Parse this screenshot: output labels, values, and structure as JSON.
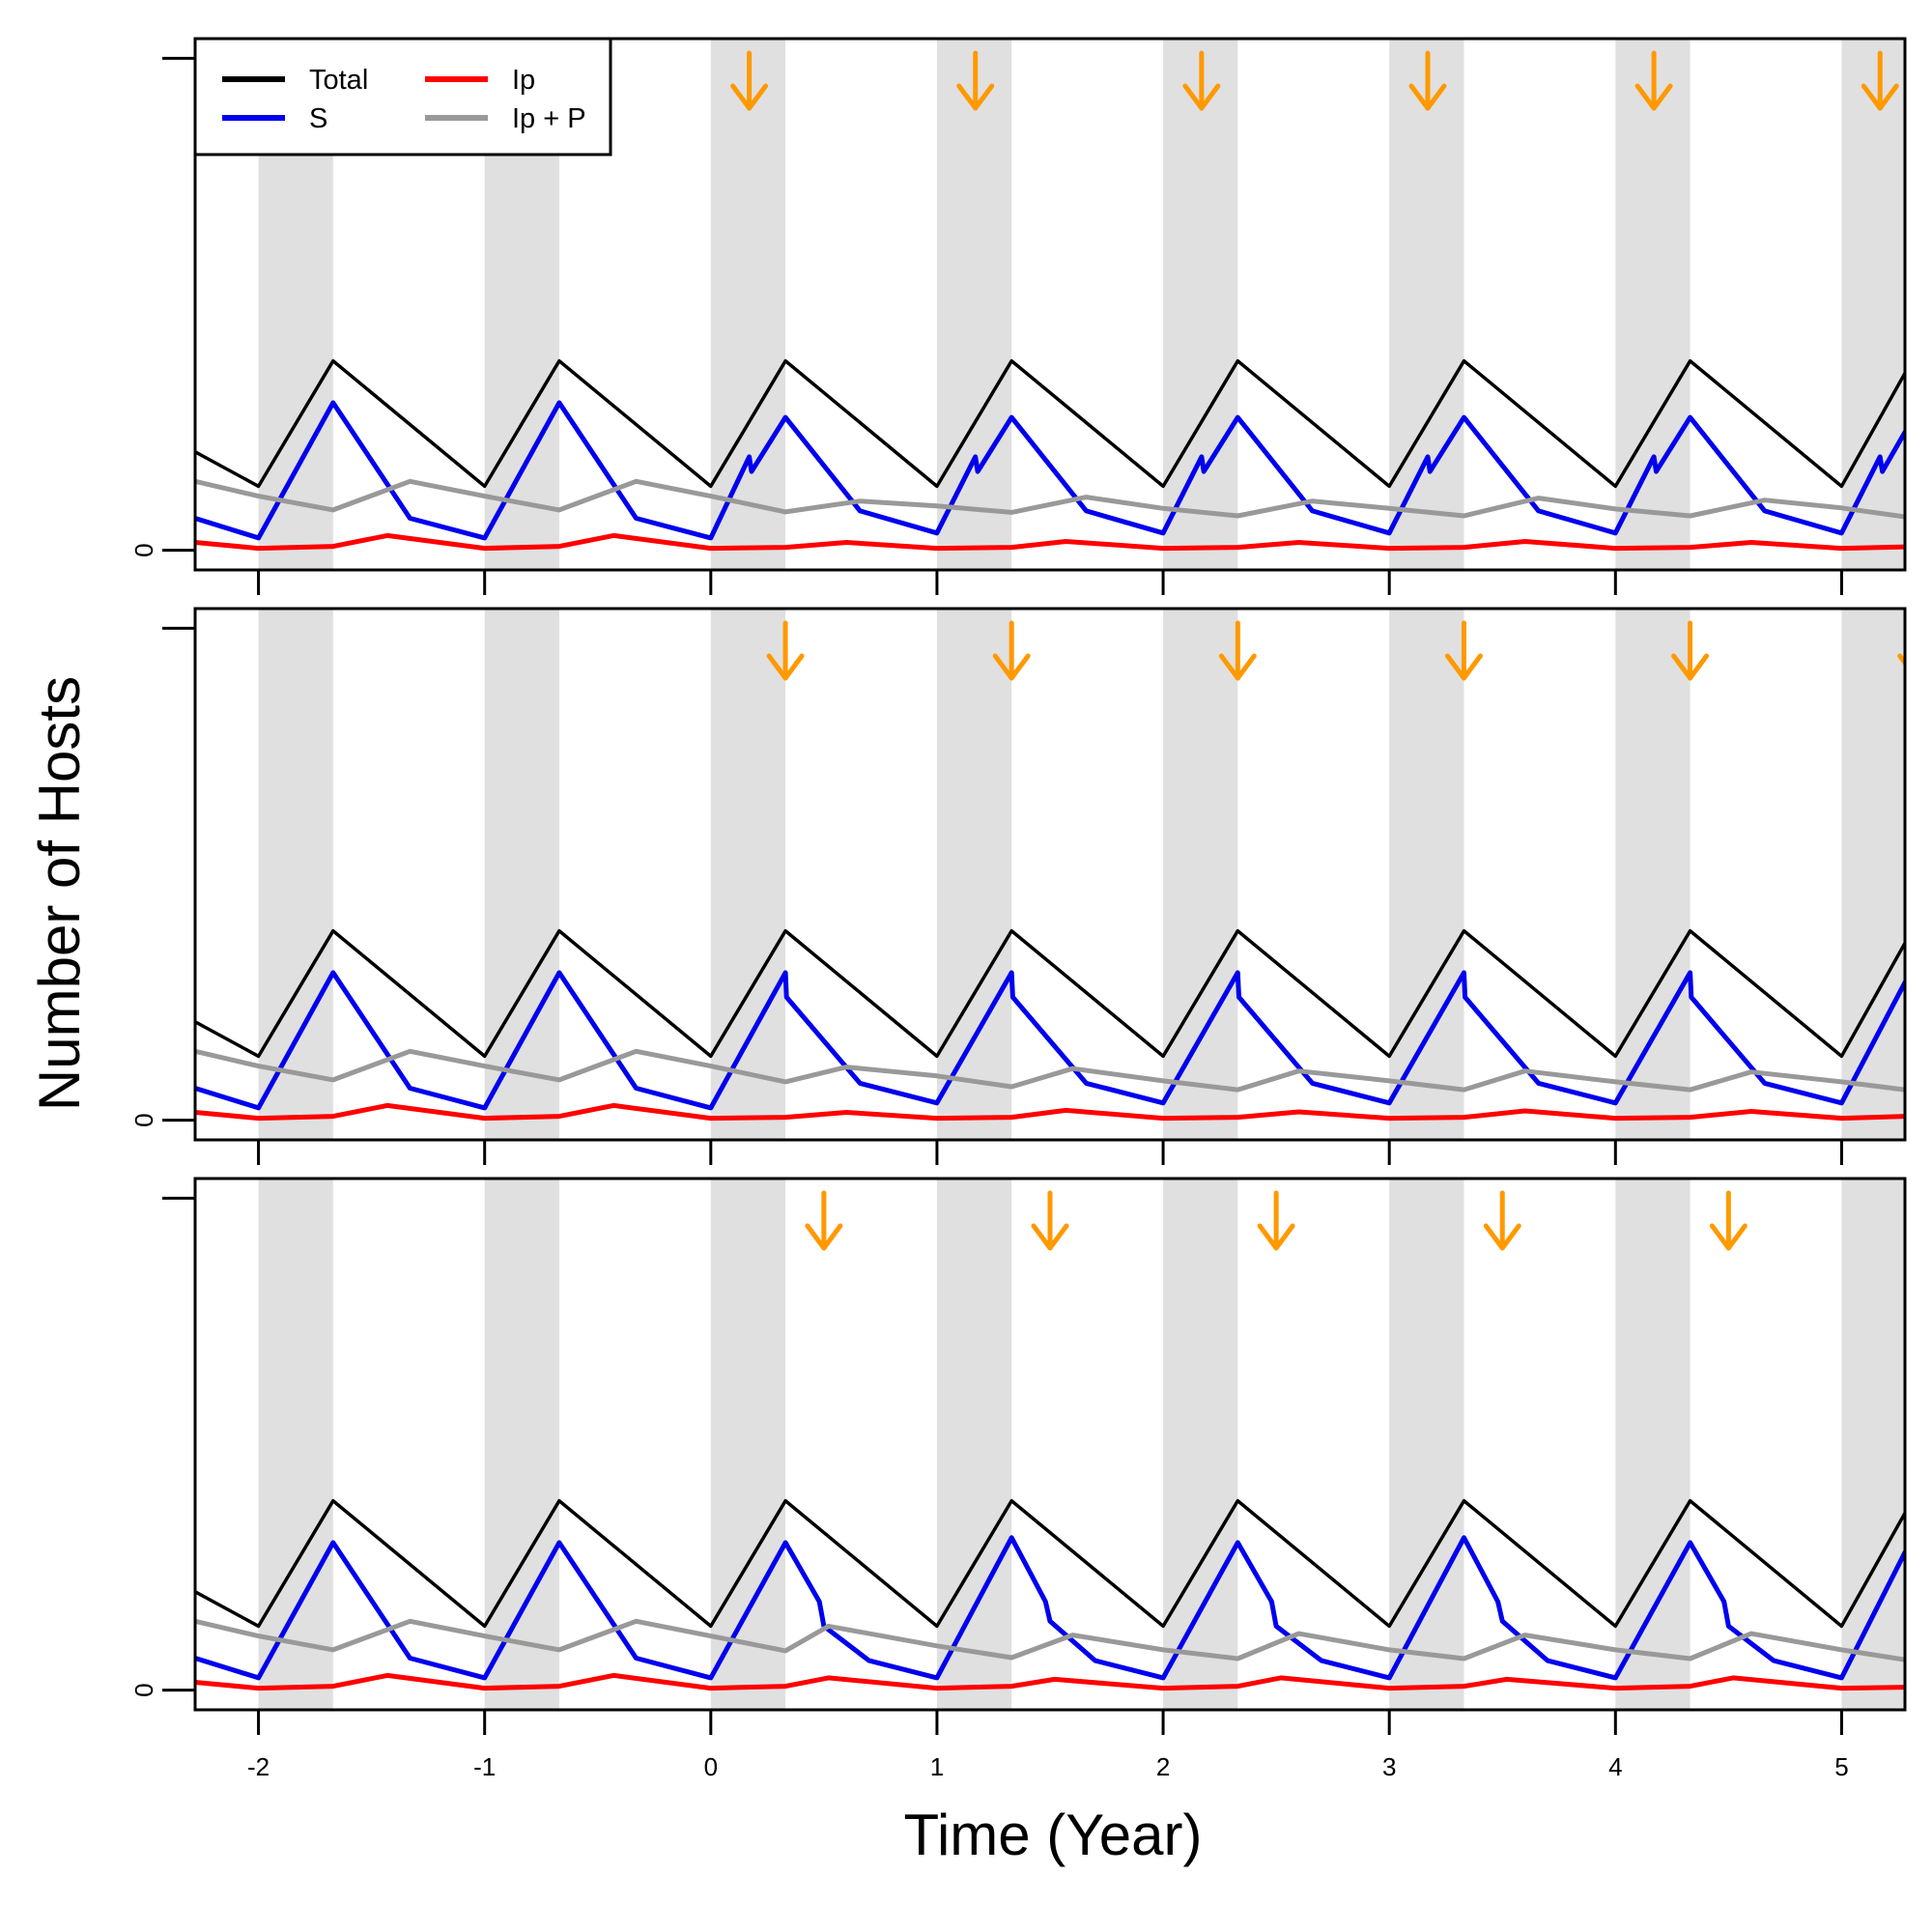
{
  "figure": {
    "xlabel": "Time (Year)",
    "ylabel": "Number of Hosts"
  },
  "legend": {
    "placement": "top-left",
    "entries": [
      {
        "label": "Total",
        "color": "#000000"
      },
      {
        "label": "Ip",
        "color": "#ff0000"
      },
      {
        "label": "S",
        "color": "#0000ee"
      },
      {
        "label": "Ip + P",
        "color": "#999999"
      }
    ]
  },
  "colors": {
    "total": "#000000",
    "S": "#0000ee",
    "Ip": "#ff0000",
    "IpP": "#999999",
    "arrow": "#ff9900",
    "season_shade": "#e0e0e0"
  },
  "chart_data": [
    {
      "type": "line",
      "panel": "top",
      "xlim": [
        -2.28,
        5.28
      ],
      "ylim": [
        -0.04,
        1.04
      ],
      "y_ticks": [
        "0",
        ""
      ],
      "x_ticks": [
        -2,
        -1,
        0,
        1,
        2,
        3,
        4,
        5
      ],
      "x_tick_labels_shown": false,
      "shaded_seasons": [
        [
          -2,
          -1.67
        ],
        [
          -1,
          -0.67
        ],
        [
          0,
          0.33
        ],
        [
          1,
          1.33
        ],
        [
          2,
          2.33
        ],
        [
          3,
          3.33
        ],
        [
          4,
          4.33
        ],
        [
          5,
          5.33
        ]
      ],
      "intervention_arrows_at": [
        0.17,
        1.17,
        2.17,
        3.17,
        4.17,
        5.17
      ],
      "series": [
        {
          "name": "Total",
          "x": [
            -2.28,
            -2.0,
            -1.67,
            -1.0,
            -0.67,
            0.0,
            0.33,
            1.0,
            1.33,
            2.0,
            2.33,
            3.0,
            3.33,
            4.0,
            4.33,
            5.0,
            5.28
          ],
          "y": [
            0.2,
            0.13,
            0.385,
            0.13,
            0.385,
            0.13,
            0.385,
            0.13,
            0.385,
            0.13,
            0.385,
            0.13,
            0.385,
            0.13,
            0.385,
            0.13,
            0.36
          ]
        },
        {
          "name": "S",
          "x": [
            -2.28,
            -2.0,
            -1.67,
            -1.33,
            -1.0,
            -0.67,
            -0.33,
            0.0,
            0.17,
            0.18,
            0.33,
            0.66,
            1.0,
            1.17,
            1.18,
            1.33,
            1.66,
            2.0,
            2.17,
            2.18,
            2.33,
            2.66,
            3.0,
            3.17,
            3.18,
            3.33,
            3.66,
            4.0,
            4.17,
            4.18,
            4.33,
            4.66,
            5.0,
            5.17,
            5.18,
            5.28
          ],
          "y": [
            0.065,
            0.025,
            0.3,
            0.065,
            0.025,
            0.3,
            0.065,
            0.025,
            0.19,
            0.16,
            0.27,
            0.08,
            0.035,
            0.19,
            0.16,
            0.27,
            0.08,
            0.035,
            0.19,
            0.16,
            0.27,
            0.08,
            0.035,
            0.19,
            0.16,
            0.27,
            0.08,
            0.035,
            0.19,
            0.16,
            0.27,
            0.08,
            0.035,
            0.19,
            0.16,
            0.24
          ]
        },
        {
          "name": "Ip",
          "x": [
            -2.28,
            -2.0,
            -1.67,
            -1.43,
            -1.0,
            -0.67,
            -0.43,
            0.0,
            0.33,
            0.6,
            1.0,
            1.33,
            1.57,
            2.0,
            2.33,
            2.6,
            3.0,
            3.33,
            3.6,
            4.0,
            4.33,
            4.6,
            5.0,
            5.28
          ],
          "y": [
            0.016,
            0.004,
            0.008,
            0.03,
            0.004,
            0.008,
            0.03,
            0.004,
            0.006,
            0.016,
            0.004,
            0.006,
            0.018,
            0.004,
            0.006,
            0.016,
            0.004,
            0.006,
            0.018,
            0.004,
            0.006,
            0.016,
            0.004,
            0.007
          ]
        },
        {
          "name": "Ip + P",
          "x": [
            -2.28,
            -2.0,
            -1.67,
            -1.33,
            -1.0,
            -0.67,
            -0.33,
            0.0,
            0.33,
            0.66,
            1.0,
            1.33,
            1.66,
            2.0,
            2.33,
            2.66,
            3.0,
            3.33,
            3.66,
            4.0,
            4.33,
            4.66,
            5.0,
            5.28
          ],
          "y": [
            0.14,
            0.11,
            0.082,
            0.14,
            0.11,
            0.082,
            0.14,
            0.11,
            0.078,
            0.1,
            0.09,
            0.077,
            0.108,
            0.085,
            0.07,
            0.1,
            0.085,
            0.07,
            0.106,
            0.084,
            0.07,
            0.102,
            0.086,
            0.068
          ]
        }
      ]
    },
    {
      "type": "line",
      "panel": "middle",
      "xlim": [
        -2.28,
        5.28
      ],
      "ylim": [
        -0.04,
        1.04
      ],
      "y_ticks": [
        "0",
        ""
      ],
      "x_ticks": [
        -2,
        -1,
        0,
        1,
        2,
        3,
        4,
        5
      ],
      "x_tick_labels_shown": false,
      "shaded_seasons": [
        [
          -2,
          -1.67
        ],
        [
          -1,
          -0.67
        ],
        [
          0,
          0.33
        ],
        [
          1,
          1.33
        ],
        [
          2,
          2.33
        ],
        [
          3,
          3.33
        ],
        [
          4,
          4.33
        ],
        [
          5,
          5.33
        ]
      ],
      "intervention_arrows_at": [
        0.33,
        1.33,
        2.33,
        3.33,
        4.33,
        5.33
      ],
      "series": [
        {
          "name": "Total",
          "x": [
            -2.28,
            -2.0,
            -1.67,
            -1.0,
            -0.67,
            0.0,
            0.33,
            1.0,
            1.33,
            2.0,
            2.33,
            3.0,
            3.33,
            4.0,
            4.33,
            5.0,
            5.28
          ],
          "y": [
            0.2,
            0.13,
            0.385,
            0.13,
            0.385,
            0.13,
            0.385,
            0.13,
            0.385,
            0.13,
            0.385,
            0.13,
            0.385,
            0.13,
            0.385,
            0.13,
            0.36
          ]
        },
        {
          "name": "S",
          "x": [
            -2.28,
            -2.0,
            -1.67,
            -1.33,
            -1.0,
            -0.67,
            -0.33,
            0.0,
            0.33,
            0.335,
            0.66,
            1.0,
            1.33,
            1.335,
            1.66,
            2.0,
            2.33,
            2.335,
            2.66,
            3.0,
            3.33,
            3.335,
            3.66,
            4.0,
            4.33,
            4.335,
            4.66,
            5.0,
            5.28
          ],
          "y": [
            0.065,
            0.025,
            0.3,
            0.065,
            0.025,
            0.3,
            0.065,
            0.025,
            0.3,
            0.25,
            0.075,
            0.035,
            0.3,
            0.25,
            0.075,
            0.035,
            0.3,
            0.25,
            0.075,
            0.035,
            0.3,
            0.25,
            0.075,
            0.035,
            0.3,
            0.25,
            0.075,
            0.035,
            0.28
          ]
        },
        {
          "name": "Ip",
          "x": [
            -2.28,
            -2.0,
            -1.67,
            -1.43,
            -1.0,
            -0.67,
            -0.43,
            0.0,
            0.33,
            0.6,
            1.0,
            1.33,
            1.57,
            2.0,
            2.33,
            2.6,
            3.0,
            3.33,
            3.6,
            4.0,
            4.33,
            4.6,
            5.0,
            5.28
          ],
          "y": [
            0.016,
            0.004,
            0.008,
            0.03,
            0.004,
            0.008,
            0.03,
            0.004,
            0.006,
            0.016,
            0.004,
            0.006,
            0.02,
            0.004,
            0.006,
            0.017,
            0.004,
            0.006,
            0.019,
            0.004,
            0.006,
            0.018,
            0.004,
            0.008
          ]
        },
        {
          "name": "Ip + P",
          "x": [
            -2.28,
            -2.0,
            -1.67,
            -1.33,
            -1.0,
            -0.67,
            -0.33,
            0.0,
            0.33,
            0.6,
            1.0,
            1.33,
            1.6,
            2.0,
            2.33,
            2.6,
            3.0,
            3.33,
            3.6,
            4.0,
            4.33,
            4.6,
            5.0,
            5.28
          ],
          "y": [
            0.14,
            0.11,
            0.082,
            0.14,
            0.11,
            0.082,
            0.14,
            0.11,
            0.078,
            0.108,
            0.09,
            0.068,
            0.105,
            0.08,
            0.062,
            0.1,
            0.08,
            0.062,
            0.1,
            0.078,
            0.062,
            0.098,
            0.078,
            0.062
          ]
        }
      ]
    },
    {
      "type": "line",
      "panel": "bottom",
      "xlim": [
        -2.28,
        5.28
      ],
      "ylim": [
        -0.04,
        1.04
      ],
      "y_ticks": [
        "0",
        ""
      ],
      "x_ticks": [
        -2,
        -1,
        0,
        1,
        2,
        3,
        4,
        5
      ],
      "x_tick_labels_shown": true,
      "x_tick_labels": [
        "-2",
        "-1",
        "0",
        "1",
        "2",
        "3",
        "4",
        "5"
      ],
      "shaded_seasons": [
        [
          -2,
          -1.67
        ],
        [
          -1,
          -0.67
        ],
        [
          0,
          0.33
        ],
        [
          1,
          1.33
        ],
        [
          2,
          2.33
        ],
        [
          3,
          3.33
        ],
        [
          4,
          4.33
        ],
        [
          5,
          5.33
        ]
      ],
      "intervention_arrows_at": [
        0.5,
        1.5,
        2.5,
        3.5,
        4.5
      ],
      "series": [
        {
          "name": "Total",
          "x": [
            -2.28,
            -2.0,
            -1.67,
            -1.0,
            -0.67,
            0.0,
            0.33,
            1.0,
            1.33,
            2.0,
            2.33,
            3.0,
            3.33,
            4.0,
            4.33,
            5.0,
            5.28
          ],
          "y": [
            0.2,
            0.13,
            0.385,
            0.13,
            0.385,
            0.13,
            0.385,
            0.13,
            0.385,
            0.13,
            0.385,
            0.13,
            0.385,
            0.13,
            0.385,
            0.13,
            0.36
          ]
        },
        {
          "name": "S",
          "x": [
            -2.28,
            -2.0,
            -1.67,
            -1.33,
            -1.0,
            -0.67,
            -0.33,
            0.0,
            0.33,
            0.48,
            0.5,
            0.7,
            1.0,
            1.33,
            1.48,
            1.5,
            1.7,
            2.0,
            2.33,
            2.48,
            2.5,
            2.7,
            3.0,
            3.33,
            3.48,
            3.5,
            3.7,
            4.0,
            4.33,
            4.48,
            4.5,
            4.7,
            5.0,
            5.28
          ],
          "y": [
            0.065,
            0.025,
            0.3,
            0.065,
            0.025,
            0.3,
            0.065,
            0.025,
            0.3,
            0.18,
            0.13,
            0.06,
            0.025,
            0.31,
            0.18,
            0.14,
            0.06,
            0.025,
            0.3,
            0.18,
            0.13,
            0.06,
            0.025,
            0.31,
            0.18,
            0.14,
            0.06,
            0.025,
            0.3,
            0.18,
            0.13,
            0.06,
            0.025,
            0.28
          ]
        },
        {
          "name": "Ip",
          "x": [
            -2.28,
            -2.0,
            -1.67,
            -1.43,
            -1.0,
            -0.67,
            -0.43,
            0.0,
            0.33,
            0.52,
            1.0,
            1.33,
            1.52,
            2.0,
            2.33,
            2.52,
            3.0,
            3.33,
            3.52,
            4.0,
            4.33,
            4.52,
            5.0,
            5.28
          ],
          "y": [
            0.016,
            0.004,
            0.008,
            0.03,
            0.004,
            0.008,
            0.03,
            0.004,
            0.008,
            0.025,
            0.004,
            0.008,
            0.022,
            0.004,
            0.008,
            0.025,
            0.004,
            0.008,
            0.022,
            0.004,
            0.008,
            0.025,
            0.004,
            0.006
          ]
        },
        {
          "name": "Ip + P",
          "x": [
            -2.28,
            -2.0,
            -1.67,
            -1.33,
            -1.0,
            -0.67,
            -0.33,
            0.0,
            0.33,
            0.52,
            1.0,
            1.33,
            1.6,
            2.0,
            2.33,
            2.6,
            3.0,
            3.33,
            3.6,
            4.0,
            4.33,
            4.6,
            5.0,
            5.28
          ],
          "y": [
            0.14,
            0.11,
            0.082,
            0.14,
            0.11,
            0.082,
            0.14,
            0.11,
            0.08,
            0.13,
            0.09,
            0.066,
            0.112,
            0.082,
            0.064,
            0.115,
            0.082,
            0.064,
            0.112,
            0.082,
            0.064,
            0.115,
            0.082,
            0.062
          ]
        }
      ]
    }
  ]
}
